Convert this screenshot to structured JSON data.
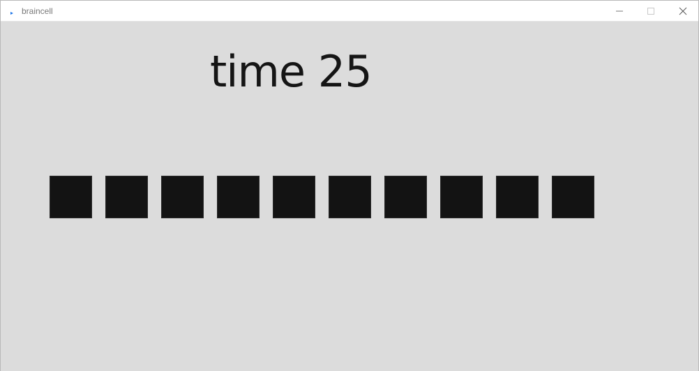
{
  "window": {
    "title": "braincell",
    "controls": {
      "minimize_icon": "minimize-icon",
      "maximize_icon": "maximize-icon",
      "close_icon": "close-icon"
    },
    "accent_color": "#1a73e8"
  },
  "game": {
    "time_text": "time 25",
    "cells": [
      {
        "state": "dark"
      },
      {
        "state": "dark"
      },
      {
        "state": "dark"
      },
      {
        "state": "dark"
      },
      {
        "state": "dark"
      },
      {
        "state": "dark"
      },
      {
        "state": "dark"
      },
      {
        "state": "dark"
      },
      {
        "state": "dark"
      },
      {
        "state": "dark"
      }
    ],
    "colors": {
      "background": "#dcdcdc",
      "cell": "#131313",
      "text": "#151515"
    }
  }
}
